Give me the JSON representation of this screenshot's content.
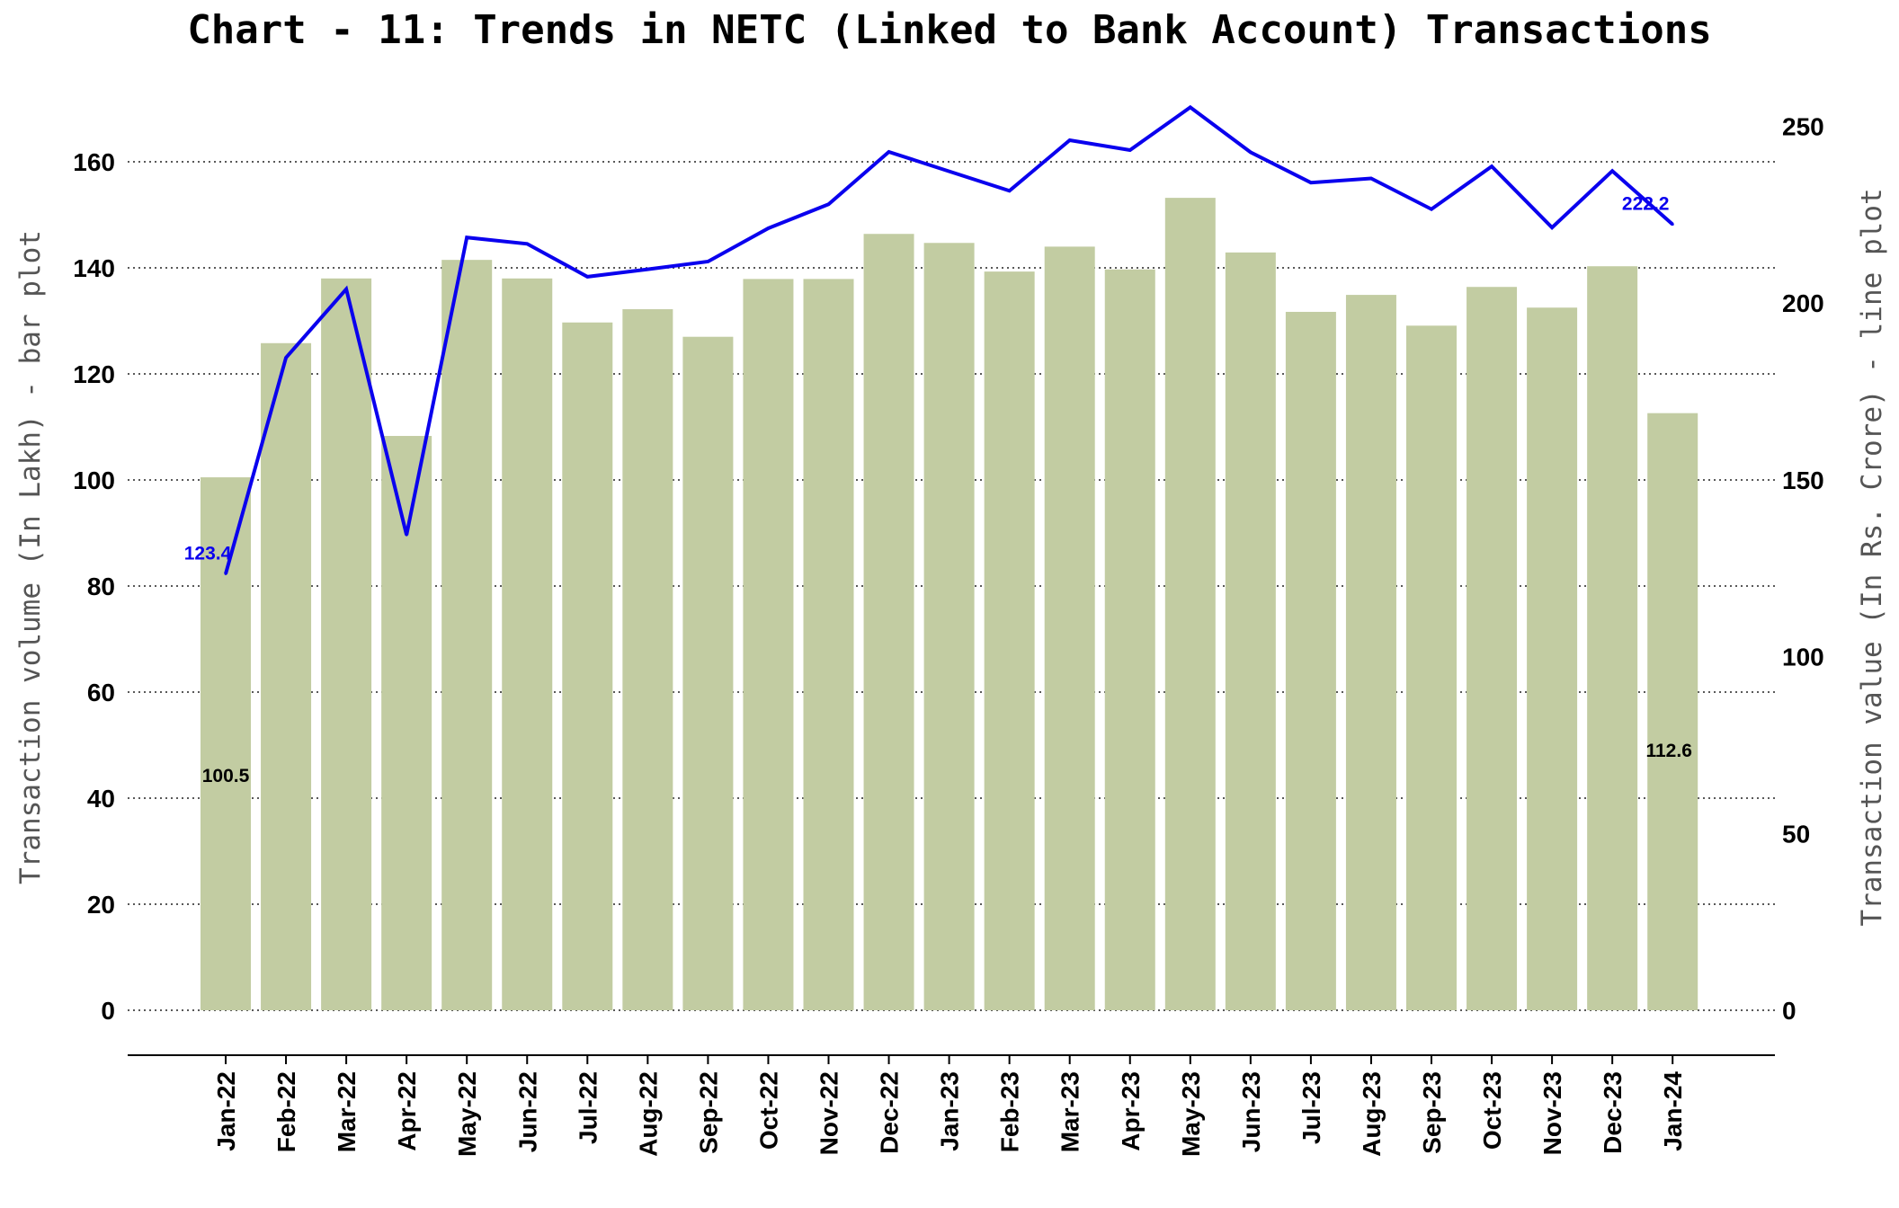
{
  "chart_data": {
    "type": "bar",
    "title": "Chart - 11: Trends in NETC (Linked to Bank Account) Transactions",
    "ylabel_left": "Transaction volume (In Lakh) - bar plot",
    "ylabel_right": "Transaction value (In Rs. Crore) - line plot",
    "categories": [
      "Jan-22",
      "Feb-22",
      "Mar-22",
      "Apr-22",
      "May-22",
      "Jun-22",
      "Jul-22",
      "Aug-22",
      "Sep-22",
      "Oct-22",
      "Nov-22",
      "Dec-22",
      "Jan-23",
      "Feb-23",
      "Mar-23",
      "Apr-23",
      "May-23",
      "Jun-23",
      "Jul-23",
      "Aug-23",
      "Sep-23",
      "Oct-23",
      "Nov-23",
      "Dec-23",
      "Jan-24"
    ],
    "left_axis": {
      "ylim": [
        0,
        170
      ],
      "ticks": [
        0,
        20,
        40,
        60,
        80,
        100,
        120,
        140,
        160
      ]
    },
    "right_axis": {
      "ylim": [
        0,
        262
      ],
      "ticks": [
        0,
        50,
        100,
        150,
        200,
        250
      ]
    },
    "grid": "horizontal dotted",
    "series": [
      {
        "type": "bar",
        "axis": "left",
        "color": "#c2cca2",
        "values": [
          100.5,
          125.8,
          138.0,
          108.3,
          141.5,
          138.0,
          129.7,
          132.2,
          127.0,
          137.9,
          137.9,
          146.4,
          144.7,
          139.3,
          144.0,
          139.7,
          153.2,
          142.9,
          131.7,
          134.9,
          129.1,
          136.4,
          132.5,
          140.3,
          112.6
        ]
      },
      {
        "type": "line",
        "axis": "right",
        "color": "#0a00ee",
        "values": [
          123.4,
          184.5,
          203.9,
          134.4,
          218.5,
          216.7,
          207.4,
          209.5,
          211.7,
          221.1,
          227.9,
          242.7,
          237.2,
          231.7,
          246.0,
          243.2,
          255.3,
          242.6,
          234.0,
          235.2,
          226.5,
          238.6,
          221.3,
          237.3,
          222.2
        ]
      }
    ],
    "data_labels": {
      "bar_first": "100.5",
      "bar_last": "112.6",
      "line_first": "123.4",
      "line_last": "222.2"
    }
  }
}
